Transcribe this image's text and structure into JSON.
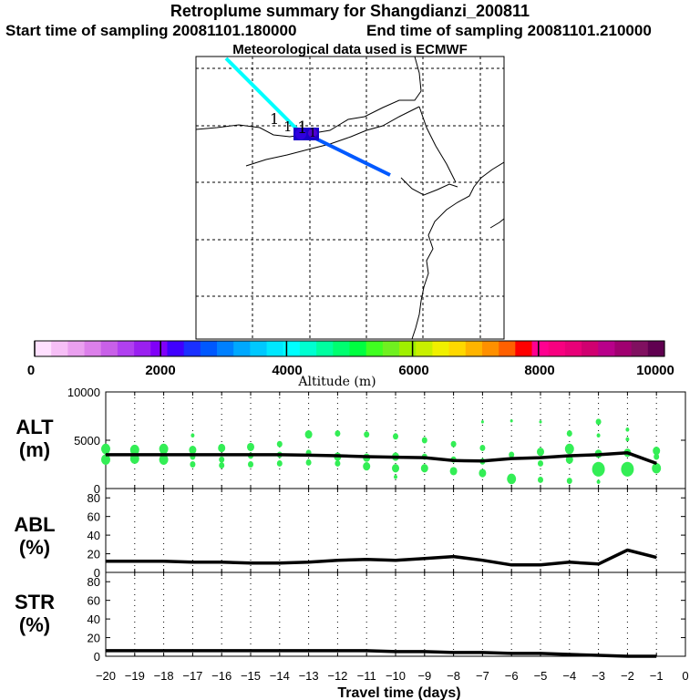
{
  "header": {
    "title": "Retroplume summary for Shangdianzi_200811",
    "start": "Start time of sampling 20081101.180000",
    "end": "End time of sampling 20081101.210000",
    "met": "Meteorological data used is ECMWF"
  },
  "map": {
    "release_labels": [
      "1",
      "1",
      "1",
      "1"
    ],
    "track": [
      {
        "segment": "upper",
        "color": "#00ffff"
      },
      {
        "segment": "lower",
        "color": "#0059ff"
      }
    ]
  },
  "colorbar": {
    "label": "Altitude (m)",
    "tick_labels": [
      "0",
      "2000",
      "4000",
      "6000",
      "8000",
      "10000"
    ],
    "colors": [
      "#ffe0ff",
      "#f6bff6",
      "#eaa0ef",
      "#dc80ea",
      "#c860e8",
      "#b040f0",
      "#9a20f0",
      "#8000f8",
      "#4000ff",
      "#1a30ff",
      "#0058ff",
      "#0080ff",
      "#00a8ff",
      "#00c8ff",
      "#00e8ff",
      "#00ffff",
      "#00ffd0",
      "#00ffa0",
      "#00ff70",
      "#00ff40",
      "#40ff20",
      "#70f020",
      "#a0f000",
      "#c8f000",
      "#f0f000",
      "#ffd800",
      "#ffb400",
      "#ff9000",
      "#ff6000",
      "#ff0000",
      "#ff0090",
      "#f80080",
      "#e80078",
      "#d00070",
      "#b8008a",
      "#a00070",
      "#801060",
      "#600050"
    ]
  },
  "chart_data": [
    {
      "type": "line",
      "panel": "ALT",
      "ylabel": [
        "ALT",
        "(m)"
      ],
      "ylim": [
        0,
        10000
      ],
      "yticks": [
        0,
        5000,
        10000
      ],
      "x": [
        -20,
        -19,
        -18,
        -17,
        -16,
        -15,
        -14,
        -13,
        -12,
        -11,
        -10,
        -9,
        -8,
        -7,
        -6,
        -5,
        -4,
        -3,
        -2,
        -1
      ],
      "values": [
        3500,
        3500,
        3500,
        3500,
        3500,
        3500,
        3500,
        3450,
        3400,
        3300,
        3250,
        3200,
        2900,
        2850,
        3100,
        3200,
        3400,
        3500,
        3700,
        2600
      ],
      "scatter_color": "#33ee55",
      "scatter": [
        [
          -20,
          4100,
          5
        ],
        [
          -20,
          3000,
          5
        ],
        [
          -19,
          4000,
          5
        ],
        [
          -19,
          3100,
          5
        ],
        [
          -18,
          4100,
          5
        ],
        [
          -18,
          3000,
          5
        ],
        [
          -17,
          4000,
          4
        ],
        [
          -17,
          3300,
          3
        ],
        [
          -17,
          2500,
          3
        ],
        [
          -17,
          5500,
          2
        ],
        [
          -16,
          4200,
          4
        ],
        [
          -16,
          3000,
          3
        ],
        [
          -16,
          2400,
          3
        ],
        [
          -15,
          4300,
          4
        ],
        [
          -15,
          3400,
          3
        ],
        [
          -15,
          2500,
          3
        ],
        [
          -14,
          4600,
          3
        ],
        [
          -14,
          3500,
          3
        ],
        [
          -14,
          2600,
          3
        ],
        [
          -13,
          5600,
          4
        ],
        [
          -13,
          3700,
          3
        ],
        [
          -13,
          2700,
          3
        ],
        [
          -12,
          5700,
          3
        ],
        [
          -12,
          3300,
          4
        ],
        [
          -12,
          2600,
          3
        ],
        [
          -11,
          5600,
          3
        ],
        [
          -11,
          3200,
          4
        ],
        [
          -11,
          2300,
          4
        ],
        [
          -10,
          5400,
          3
        ],
        [
          -10,
          3300,
          4
        ],
        [
          -10,
          2100,
          4
        ],
        [
          -10,
          1200,
          2
        ],
        [
          -9,
          5000,
          3
        ],
        [
          -9,
          3300,
          3
        ],
        [
          -9,
          2100,
          4
        ],
        [
          -8,
          4600,
          3
        ],
        [
          -8,
          3000,
          3
        ],
        [
          -8,
          1800,
          4
        ],
        [
          -7,
          6900,
          1.5
        ],
        [
          -7,
          4200,
          3
        ],
        [
          -7,
          2800,
          3
        ],
        [
          -7,
          1600,
          4
        ],
        [
          -6,
          7000,
          1.5
        ],
        [
          -6,
          3500,
          3
        ],
        [
          -6,
          1000,
          5
        ],
        [
          -5,
          6900,
          1.5
        ],
        [
          -5,
          3800,
          4
        ],
        [
          -5,
          2600,
          3
        ],
        [
          -5,
          900,
          3
        ],
        [
          -4,
          5700,
          3
        ],
        [
          -4,
          4100,
          5
        ],
        [
          -4,
          3000,
          4
        ],
        [
          -4,
          800,
          3
        ],
        [
          -3,
          6900,
          3
        ],
        [
          -3,
          5500,
          2
        ],
        [
          -3,
          3600,
          4
        ],
        [
          -3,
          2000,
          7
        ],
        [
          -3,
          700,
          2
        ],
        [
          -2,
          6100,
          2
        ],
        [
          -2,
          5100,
          2
        ],
        [
          -2,
          3700,
          4
        ],
        [
          -2,
          2000,
          7
        ],
        [
          -1,
          3900,
          4
        ],
        [
          -1,
          3300,
          3
        ],
        [
          -1,
          2100,
          5
        ]
      ]
    },
    {
      "type": "line",
      "panel": "ABL",
      "ylabel": [
        "ABL",
        "(%)"
      ],
      "ylim": [
        0,
        90
      ],
      "yticks": [
        0,
        20,
        40,
        60,
        80
      ],
      "x": [
        -20,
        -19,
        -18,
        -17,
        -16,
        -15,
        -14,
        -13,
        -12,
        -11,
        -10,
        -9,
        -8,
        -7,
        -6,
        -5,
        -4,
        -3,
        -2,
        -1
      ],
      "values": [
        12,
        12,
        12,
        11,
        11,
        10,
        10,
        11,
        13,
        14,
        13,
        15,
        17,
        13,
        8,
        8,
        11,
        9,
        24,
        16
      ]
    },
    {
      "type": "line",
      "panel": "STR",
      "ylabel": [
        "STR",
        "(%)"
      ],
      "ylim": [
        0,
        90
      ],
      "yticks": [
        0,
        20,
        40,
        60,
        80
      ],
      "x": [
        -20,
        -19,
        -18,
        -17,
        -16,
        -15,
        -14,
        -13,
        -12,
        -11,
        -10,
        -9,
        -8,
        -7,
        -6,
        -5,
        -4,
        -3,
        -2,
        -1
      ],
      "values": [
        6,
        6,
        6,
        6,
        6,
        6,
        6,
        6,
        6,
        6,
        5,
        5,
        4,
        4,
        3,
        3,
        2,
        1,
        0,
        0
      ],
      "xlabel": "Travel time (days)",
      "xticks": [
        -20,
        -19,
        -18,
        -17,
        -16,
        -15,
        -14,
        -13,
        -12,
        -11,
        -10,
        -9,
        -8,
        -7,
        -6,
        -5,
        -4,
        -3,
        -2,
        -1,
        0
      ]
    }
  ]
}
